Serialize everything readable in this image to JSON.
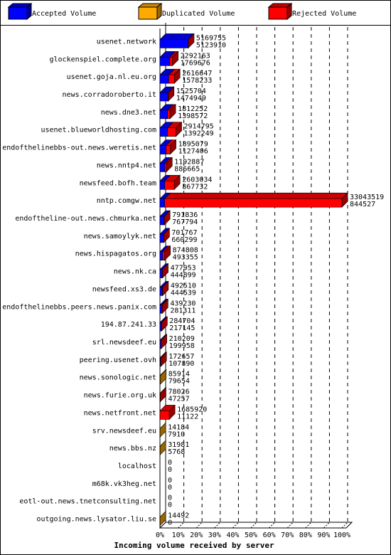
{
  "chart_data": {
    "type": "hbar3d",
    "title": "Incoming volume received by server",
    "categories": [
      "usenet.network",
      "glockenspiel.complete.org",
      "usenet.goja.nl.eu.org",
      "news.corradoroberto.it",
      "news.dne3.net",
      "usenet.blueworldhosting.com",
      "endofthelinebbs-out.news.weretis.net",
      "news.nntp4.net",
      "newsfeed.bofh.team",
      "nntp.comgw.net",
      "endoftheline-out.news.chmurka.net",
      "news.samoylyk.net",
      "news.hispagatos.org",
      "news.nk.ca",
      "newsfeed.xs3.de",
      "endofthelinebbs.peers.news.panix.com",
      "194.87.241.33",
      "srl.newsdeef.eu",
      "peering.usenet.ovh",
      "news.sonologic.net",
      "news.furie.org.uk",
      "news.netfront.net",
      "srv.newsdeef.eu",
      "news.bbs.nz",
      "localhost",
      "m68k.vk3heg.net",
      "eotl-out.news.tnetconsulting.net",
      "outgoing.news.lysator.liu.se"
    ],
    "series": [
      {
        "name": "Accepted Volume",
        "color": "#0000ff",
        "values": [
          15.5,
          5.4,
          4.8,
          4.5,
          4.2,
          4.2,
          3.4,
          2.7,
          2.6,
          2.6,
          2.3,
          2.0,
          1.5,
          1.3,
          1.3,
          0.9,
          0.7,
          0.6,
          0.3,
          0,
          0.1,
          0.03,
          0,
          0,
          0,
          0,
          0,
          0
        ]
      },
      {
        "name": "Duplicated Volume",
        "color": "#ffaa00",
        "values": [
          0,
          0,
          0,
          0,
          0,
          0,
          0,
          0,
          0,
          0,
          0,
          0,
          0,
          0,
          0,
          0,
          0,
          0,
          0,
          0.3,
          0,
          0,
          0.04,
          0.1,
          0,
          0,
          0,
          0.04
        ]
      },
      {
        "name": "Rejected Volume",
        "color": "#ff0000",
        "values": [
          0.1,
          1.5,
          3.1,
          0.1,
          1.3,
          4.6,
          2.3,
          0.9,
          5.3,
          97.4,
          0.1,
          0.1,
          1.1,
          0.1,
          0.2,
          0.4,
          0.2,
          0.03,
          0.2,
          0,
          0.1,
          5.1,
          0,
          0,
          0,
          0,
          0,
          0
        ]
      }
    ],
    "upper_labels": [
      5169755,
      2292163,
      2616647,
      1525704,
      1812252,
      2914795,
      1895079,
      1192887,
      2603034,
      33043519,
      791836,
      701767,
      874808,
      477953,
      492510,
      439230,
      284704,
      210209,
      172657,
      85914,
      78026,
      1685920,
      14184,
      31981,
      0,
      0,
      0,
      14492
    ],
    "lower_labels": [
      5123910,
      1769676,
      1578233,
      1474949,
      1398572,
      1392249,
      1127406,
      886665,
      867732,
      844527,
      767794,
      660299,
      493355,
      444899,
      444539,
      281311,
      217145,
      199958,
      107890,
      79654,
      47257,
      11122,
      7910,
      5768,
      0,
      0,
      0,
      0
    ],
    "xlim": [
      0,
      100
    ],
    "xticks": [
      {
        "value": 0,
        "label": "0%"
      },
      {
        "value": 10,
        "label": "10%"
      },
      {
        "value": 20,
        "label": "20%"
      },
      {
        "value": 30,
        "label": "30%"
      },
      {
        "value": 40,
        "label": "40%"
      },
      {
        "value": 50,
        "label": "50%"
      },
      {
        "value": 60,
        "label": "60%"
      },
      {
        "value": 70,
        "label": "70%"
      },
      {
        "value": 80,
        "label": "80%"
      },
      {
        "value": 90,
        "label": "90%"
      },
      {
        "value": 100,
        "label": "100%"
      }
    ],
    "grid": true
  }
}
